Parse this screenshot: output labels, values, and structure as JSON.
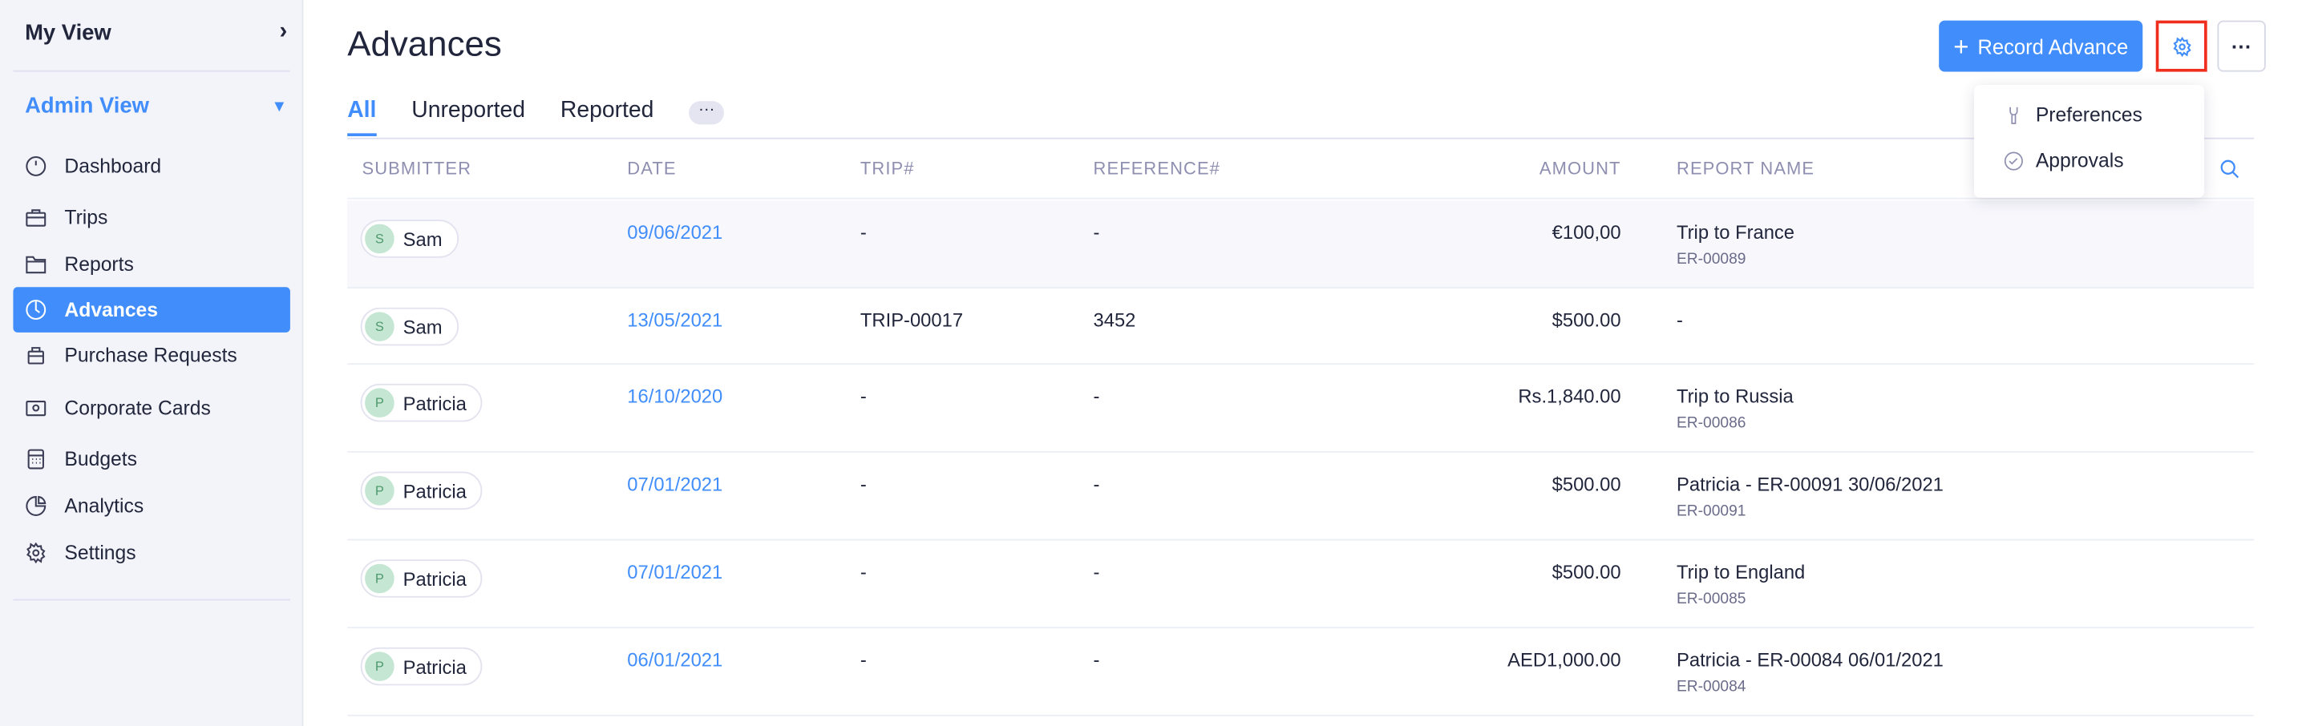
{
  "sidebar": {
    "my_view": "My View",
    "admin_view": "Admin View",
    "items": [
      {
        "label": "Dashboard",
        "icon": "dashboard-icon"
      },
      {
        "label": "Trips",
        "icon": "briefcase-icon"
      },
      {
        "label": "Reports",
        "icon": "folder-icon"
      },
      {
        "label": "Advances",
        "icon": "advance-clock-icon",
        "active": true
      },
      {
        "label": "Purchase Requests",
        "icon": "bag-icon"
      },
      {
        "label": "Corporate Cards",
        "icon": "card-icon"
      },
      {
        "label": "Budgets",
        "icon": "calculator-icon"
      },
      {
        "label": "Analytics",
        "icon": "pie-chart-icon"
      },
      {
        "label": "Settings",
        "icon": "gear-icon"
      }
    ]
  },
  "header": {
    "title": "Advances",
    "record_button": "Record Advance",
    "more": "···"
  },
  "tabs": [
    {
      "label": "All",
      "active": true
    },
    {
      "label": "Unreported"
    },
    {
      "label": "Reported"
    }
  ],
  "tab_more": "···",
  "settings_menu": {
    "items": [
      {
        "label": "Preferences",
        "icon": "wrench-icon"
      },
      {
        "label": "Approvals",
        "icon": "check-circle-icon"
      }
    ]
  },
  "table": {
    "columns": [
      "SUBMITTER",
      "DATE",
      "TRIP#",
      "REFERENCE#",
      "AMOUNT",
      "REPORT NAME"
    ],
    "rows": [
      {
        "initial": "S",
        "submitter": "Sam",
        "date": "09/06/2021",
        "trip": "-",
        "reference": "-",
        "amount": "€100,00",
        "report": "Trip to France",
        "report_id": "ER-00089"
      },
      {
        "initial": "S",
        "submitter": "Sam",
        "date": "13/05/2021",
        "trip": "TRIP-00017",
        "reference": "3452",
        "amount": "$500.00",
        "report": "-",
        "report_id": ""
      },
      {
        "initial": "P",
        "submitter": "Patricia",
        "date": "16/10/2020",
        "trip": "-",
        "reference": "-",
        "amount": "Rs.1,840.00",
        "report": "Trip to Russia",
        "report_id": "ER-00086"
      },
      {
        "initial": "P",
        "submitter": "Patricia",
        "date": "07/01/2021",
        "trip": "-",
        "reference": "-",
        "amount": "$500.00",
        "report": "Patricia - ER-00091 30/06/2021",
        "report_id": "ER-00091"
      },
      {
        "initial": "P",
        "submitter": "Patricia",
        "date": "07/01/2021",
        "trip": "-",
        "reference": "-",
        "amount": "$500.00",
        "report": "Trip to England",
        "report_id": "ER-00085"
      },
      {
        "initial": "P",
        "submitter": "Patricia",
        "date": "06/01/2021",
        "trip": "-",
        "reference": "-",
        "amount": "AED1,000.00",
        "report": "Patricia - ER-00084 06/01/2021",
        "report_id": "ER-00084"
      }
    ]
  },
  "colors": {
    "accent": "#408dfb",
    "highlight": "#ef2e1e"
  }
}
